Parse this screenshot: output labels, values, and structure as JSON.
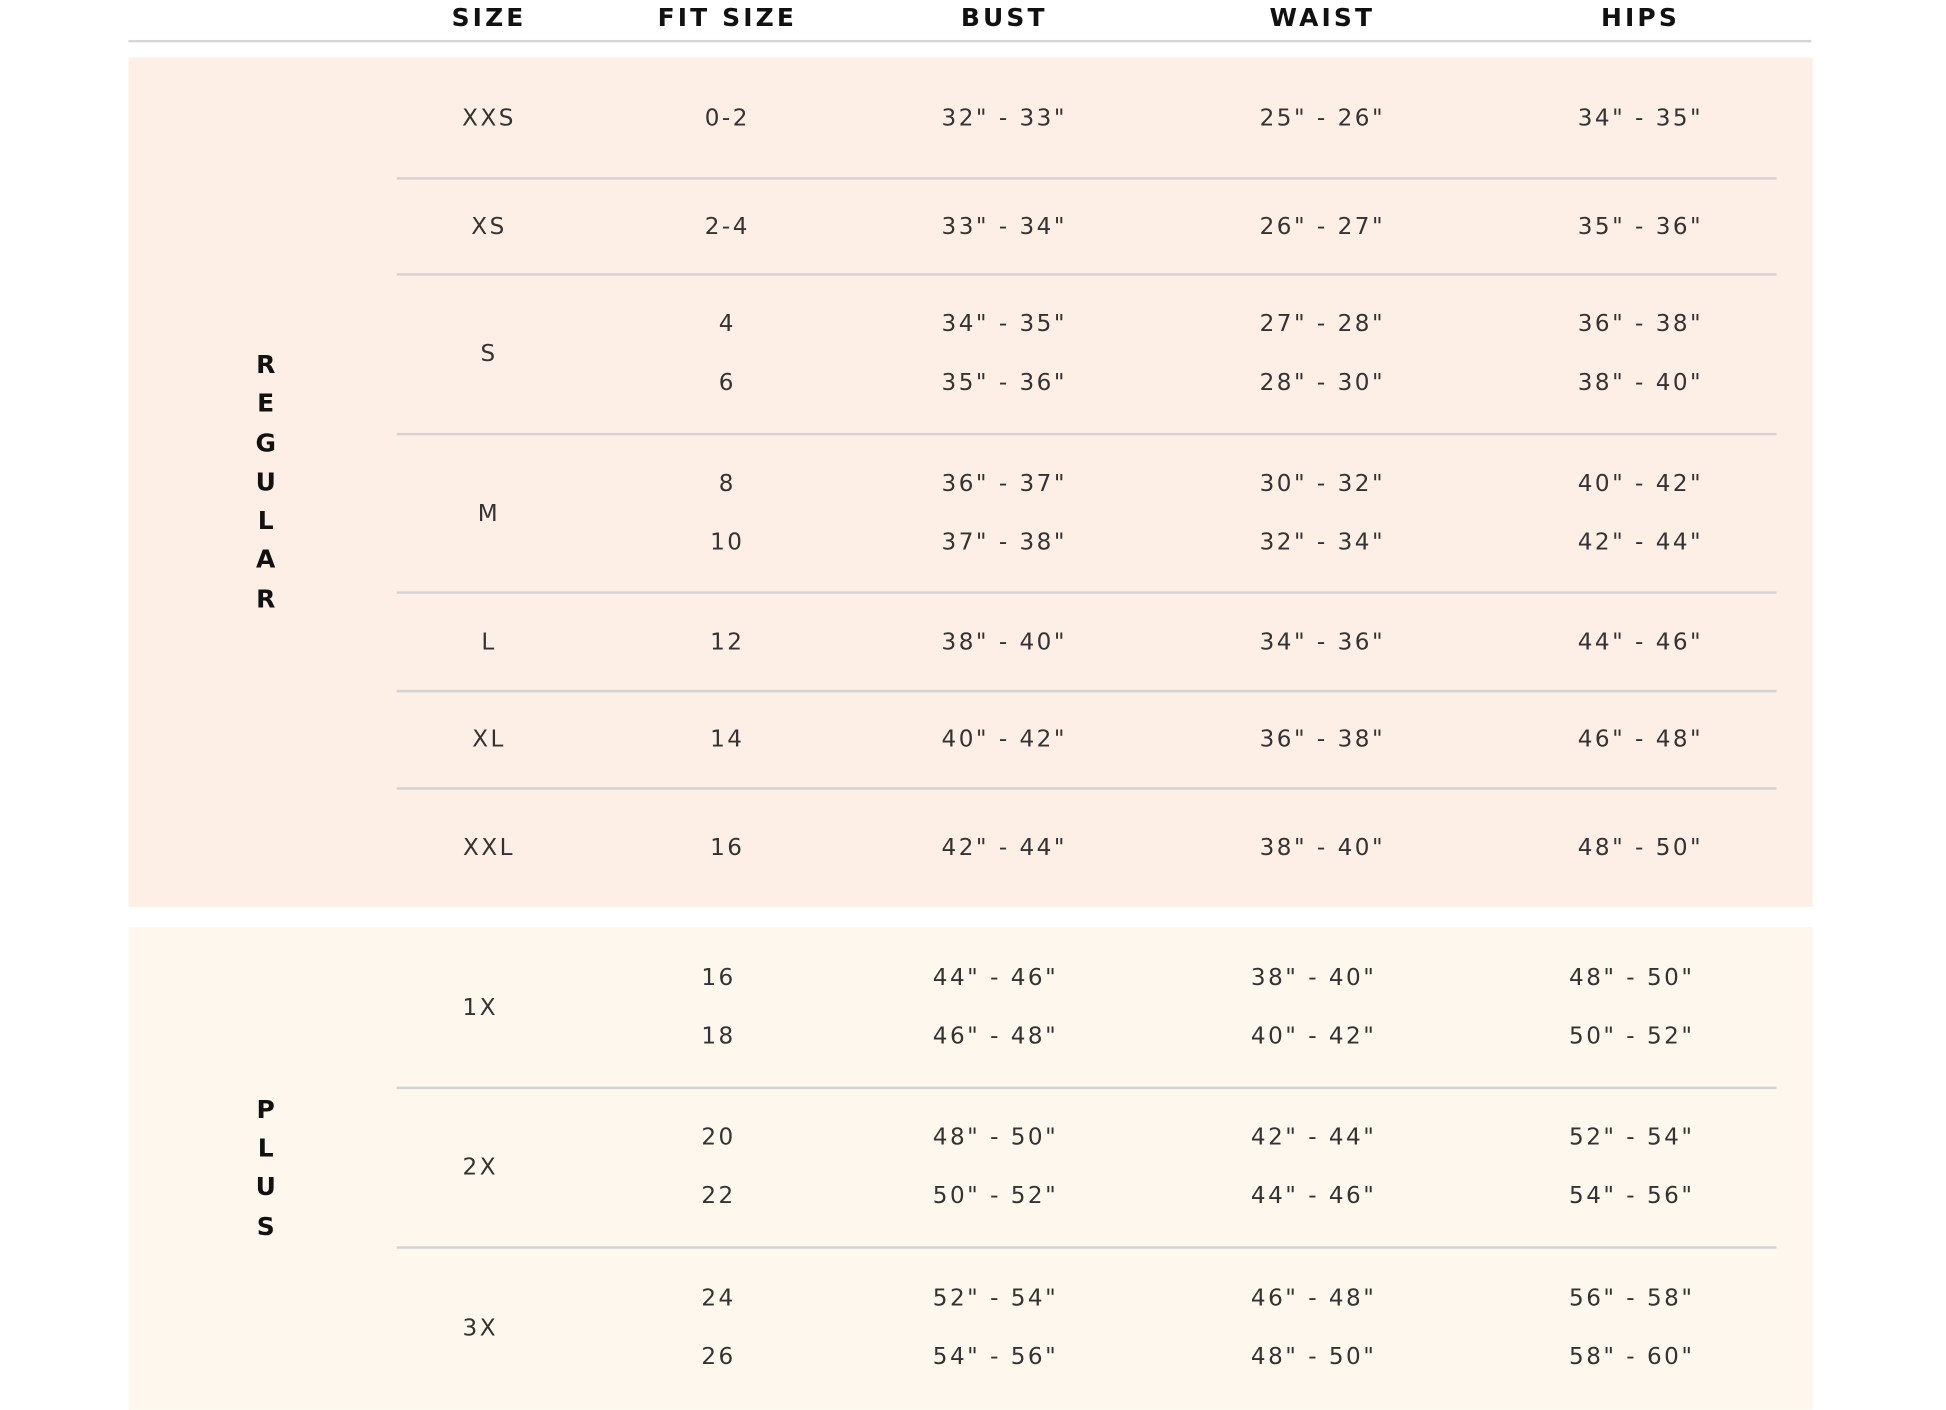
{
  "colors": {
    "regular_bg": "#fdefe5",
    "plus_bg": "#fef7ed",
    "divider": "#d3d3d6"
  },
  "headers": [
    "SIZE",
    "FIT SIZE",
    "BUST",
    "WAIST",
    "HIPS"
  ],
  "groups": [
    {
      "label": "REGULAR",
      "rows": [
        {
          "size": "XXS",
          "lines": [
            [
              "0-2",
              "32\" - 33\"",
              "25\" - 26\"",
              "34\" - 35\""
            ]
          ]
        },
        {
          "size": "XS",
          "lines": [
            [
              "2-4",
              "33\" - 34\"",
              "26\" - 27\"",
              "35\" - 36\""
            ]
          ]
        },
        {
          "size": "S",
          "lines": [
            [
              "4",
              "34\" - 35\"",
              "27\" - 28\"",
              "36\" - 38\""
            ],
            [
              "6",
              "35\" - 36\"",
              "28\" - 30\"",
              "38\" - 40\""
            ]
          ]
        },
        {
          "size": "M",
          "lines": [
            [
              "8",
              "36\" - 37\"",
              "30\" - 32\"",
              "40\" - 42\""
            ],
            [
              "10",
              "37\" - 38\"",
              "32\" - 34\"",
              "42\" - 44\""
            ]
          ]
        },
        {
          "size": "L",
          "lines": [
            [
              "12",
              "38\" - 40\"",
              "34\" - 36\"",
              "44\" - 46\""
            ]
          ]
        },
        {
          "size": "XL",
          "lines": [
            [
              "14",
              "40\" - 42\"",
              "36\" - 38\"",
              "46\" - 48\""
            ]
          ]
        },
        {
          "size": "XXL",
          "lines": [
            [
              "16",
              "42\" - 44\"",
              "38\" - 40\"",
              "48\" - 50\""
            ]
          ]
        }
      ]
    },
    {
      "label": "PLUS",
      "rows": [
        {
          "size": "1X",
          "lines": [
            [
              "16",
              "44\" - 46\"",
              "38\" - 40\"",
              "48\" - 50\""
            ],
            [
              "18",
              "46\" - 48\"",
              "40\" - 42\"",
              "50\" - 52\""
            ]
          ]
        },
        {
          "size": "2X",
          "lines": [
            [
              "20",
              "48\" - 50\"",
              "42\" - 44\"",
              "52\" - 54\""
            ],
            [
              "22",
              "50\" - 52\"",
              "44\" - 46\"",
              "54\" - 56\""
            ]
          ]
        },
        {
          "size": "3X",
          "lines": [
            [
              "24",
              "52\" - 54\"",
              "46\" - 48\"",
              "56\" - 58\""
            ],
            [
              "26",
              "54\" - 56\"",
              "48\" - 50\"",
              "58\" - 60\""
            ]
          ]
        }
      ]
    }
  ]
}
